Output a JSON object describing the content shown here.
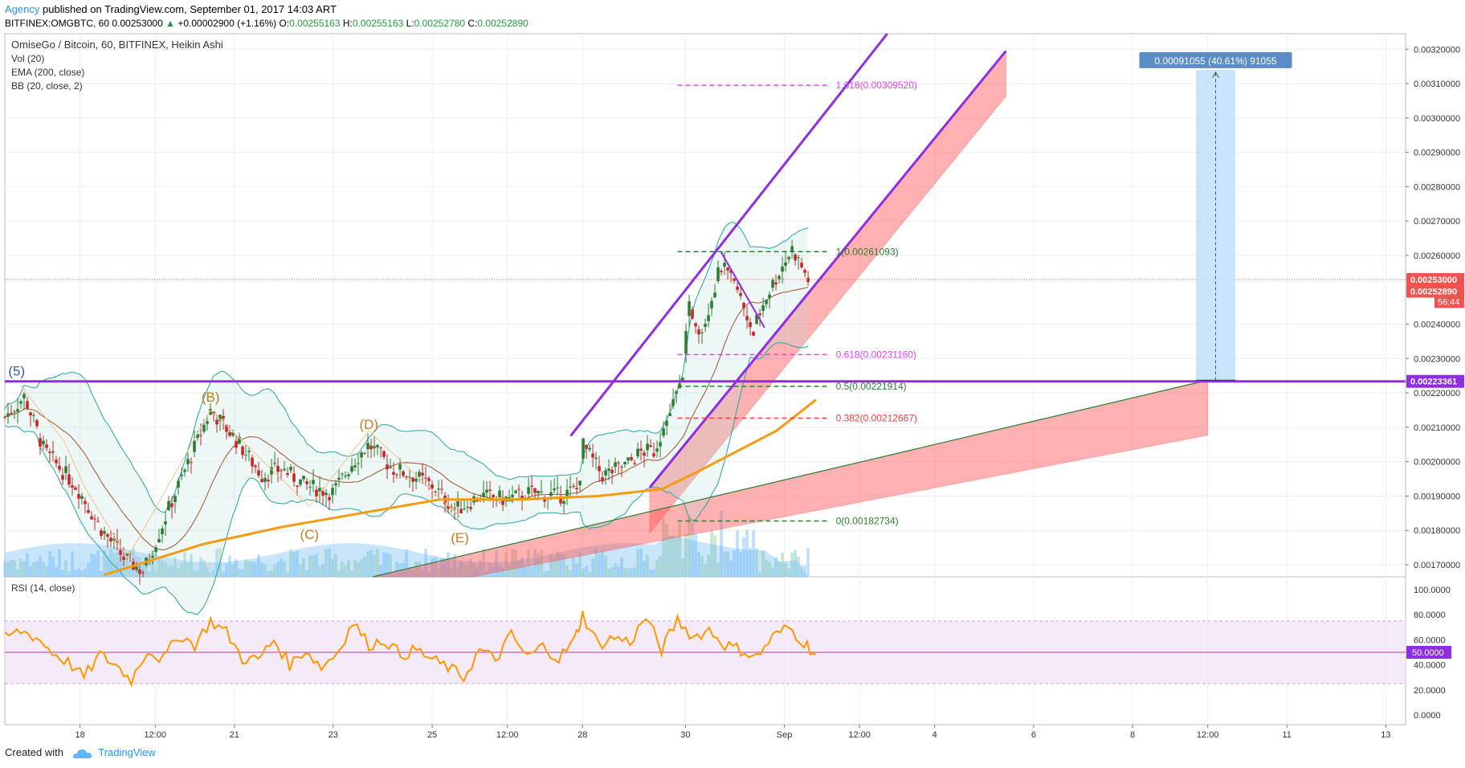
{
  "header": {
    "author": "Agency",
    "published": "published on TradingView.com, September 01, 2017 14:03 ART",
    "symbol": "BITFINEX:OMGBTC, 60",
    "last": "0.00253000",
    "change": "+0.00002900 (+1.16%)",
    "o_label": "O:",
    "o_value": "0.00255163",
    "h_label": "H:",
    "h_value": "0.00255163",
    "l_label": "L:",
    "l_value": "0.00252780",
    "c_label": "C:",
    "c_value": "0.00252890"
  },
  "legend": {
    "title": "OmiseGo / Bitcoin, 60, BITFINEX, Heikin Ashi",
    "vol": "Vol (20)",
    "ema": "EMA (200, close)",
    "bb": "BB (20, close, 2)",
    "rsi": "RSI (14, close)"
  },
  "footer": {
    "created": "Created with",
    "brand": "TradingView"
  },
  "colors": {
    "purple": "#9c27b0",
    "violet": "#8e2de2",
    "ema": "#f39c12",
    "rsi": "#ff9800",
    "red_fill": "#ff5252",
    "fib_green": "#2e7d32",
    "fib_magenta": "#e040fb",
    "fib_red": "#ef3d3d",
    "up_candle": "#2e7d32",
    "down_candle": "#c62828",
    "bb_line": "#26a69a",
    "measure": "#5b8cc4",
    "last_price_tag": "#ef5350"
  },
  "chart_data": {
    "type": "candlestick",
    "title": "OmiseGo / Bitcoin, 60, BITFINEX, Heikin Ashi",
    "price_axis": {
      "ticks": [
        "0.00320000",
        "0.00310000",
        "0.00300000",
        "0.00290000",
        "0.00280000",
        "0.00270000",
        "0.00260000",
        "0.00240000",
        "0.00230000",
        "0.00220000",
        "0.00210000",
        "0.00200000",
        "0.00190000",
        "0.00180000",
        "0.00170000"
      ],
      "tick_values": [
        0.0032,
        0.0031,
        0.003,
        0.0029,
        0.0028,
        0.0027,
        0.0026,
        0.0024,
        0.0023,
        0.0022,
        0.0021,
        0.002,
        0.0019,
        0.0018,
        0.0017
      ],
      "range": [
        0.001665,
        0.003245
      ]
    },
    "time_axis": {
      "labels": [
        "18",
        "12:00",
        "21",
        "23",
        "25",
        "12:00",
        "28",
        "30",
        "Sep",
        "12:00",
        "4",
        "6",
        "8",
        "12:00",
        "11",
        "13"
      ],
      "positions": [
        1.9,
        3.8,
        5.8,
        8.3,
        10.8,
        12.7,
        14.6,
        17.2,
        19.7,
        21.6,
        23.5,
        26.0,
        28.5,
        30.4,
        32.4,
        34.9
      ],
      "range": [
        0,
        35.4
      ]
    },
    "price_tags": {
      "last": "0.00253000",
      "close": "0.00252890",
      "countdown": "56:44",
      "resistance": "0.00223361"
    },
    "horizontal_line": {
      "value": 0.00223361
    },
    "fib_levels": [
      {
        "label": "1.618(0.00309520)",
        "value": 0.0030952
      },
      {
        "label": "1(0.00261093)",
        "value": 0.00261093
      },
      {
        "label": "0.618(0.00231160)",
        "value": 0.0023116
      },
      {
        "label": "0.5(0.00221914)",
        "value": 0.00221914
      },
      {
        "label": "0.382(0.00212667)",
        "value": 0.00212667
      },
      {
        "label": "0(0.00182734)",
        "value": 0.00182734
      }
    ],
    "measure_label": "0.00091055 (40.61%) 91055",
    "wave_labels": [
      {
        "text": "(5)",
        "t": 0.3,
        "v": 0.00225
      },
      {
        "text": "(B)",
        "t": 5.2,
        "v": 0.002175
      },
      {
        "text": "(C)",
        "t": 7.7,
        "v": 0.001775
      },
      {
        "text": "(D)",
        "t": 9.2,
        "v": 0.002095
      },
      {
        "text": "(E)",
        "t": 11.5,
        "v": 0.001765
      }
    ],
    "channel_upper": [
      [
        14.3,
        0.002075
      ],
      [
        22.3,
        0.003245
      ]
    ],
    "channel_lower": [
      [
        16.3,
        0.001925
      ],
      [
        25.3,
        0.003195
      ]
    ],
    "trend_line": [
      [
        9.3,
        0.001665
      ],
      [
        30.4,
        0.002237
      ]
    ],
    "ema_200": [
      [
        2.5,
        0.00167
      ],
      [
        5.0,
        0.00176
      ],
      [
        7.0,
        0.00181
      ],
      [
        9.0,
        0.00185
      ],
      [
        11.0,
        0.00189
      ],
      [
        13.0,
        0.00189
      ],
      [
        15.0,
        0.0019
      ],
      [
        16.6,
        0.00192
      ],
      [
        17.5,
        0.00197
      ],
      [
        18.5,
        0.00203
      ],
      [
        19.5,
        0.00209
      ],
      [
        20.5,
        0.00218
      ]
    ],
    "series_summary": [
      [
        0.0,
        0.00213
      ],
      [
        0.5,
        0.00219
      ],
      [
        1.0,
        0.00203
      ],
      [
        1.8,
        0.00193
      ],
      [
        2.4,
        0.00181
      ],
      [
        3.0,
        0.00172
      ],
      [
        3.5,
        0.00168
      ],
      [
        4.2,
        0.00188
      ],
      [
        5.2,
        0.00215
      ],
      [
        5.8,
        0.00207
      ],
      [
        6.5,
        0.00196
      ],
      [
        7.0,
        0.00198
      ],
      [
        7.6,
        0.00193
      ],
      [
        8.3,
        0.00191
      ],
      [
        8.8,
        0.002
      ],
      [
        9.2,
        0.00205
      ],
      [
        9.8,
        0.00198
      ],
      [
        10.3,
        0.00196
      ],
      [
        10.8,
        0.00193
      ],
      [
        11.4,
        0.00186
      ],
      [
        12.0,
        0.0019
      ],
      [
        12.7,
        0.00189
      ],
      [
        13.3,
        0.00191
      ],
      [
        14.0,
        0.0019
      ],
      [
        14.5,
        0.00192
      ],
      [
        14.6,
        0.00205
      ],
      [
        15.1,
        0.00196
      ],
      [
        15.7,
        0.00199
      ],
      [
        16.1,
        0.00203
      ],
      [
        16.4,
        0.00203
      ],
      [
        16.8,
        0.00214
      ],
      [
        17.1,
        0.00223
      ],
      [
        17.3,
        0.00245
      ],
      [
        17.6,
        0.00238
      ],
      [
        18.1,
        0.00257
      ],
      [
        18.5,
        0.0025
      ],
      [
        18.9,
        0.00238
      ],
      [
        19.2,
        0.00247
      ],
      [
        19.6,
        0.00256
      ],
      [
        19.9,
        0.00262
      ],
      [
        20.3,
        0.00253
      ]
    ],
    "rsi": {
      "title": "RSI (14, close)",
      "ticks": [
        "100.0000",
        "80.0000",
        "60.0000",
        "40.0000",
        "20.0000",
        "0.0000"
      ],
      "tick_values": [
        100,
        80,
        60,
        40,
        20,
        0
      ],
      "current": "50.0000",
      "band": [
        25,
        75
      ],
      "values": [
        [
          0.0,
          62
        ],
        [
          0.4,
          67
        ],
        [
          0.8,
          62
        ],
        [
          1.2,
          50
        ],
        [
          1.6,
          42
        ],
        [
          2.0,
          30
        ],
        [
          2.4,
          48
        ],
        [
          2.8,
          40
        ],
        [
          3.2,
          28
        ],
        [
          3.6,
          52
        ],
        [
          4.0,
          44
        ],
        [
          4.4,
          64
        ],
        [
          4.8,
          56
        ],
        [
          5.2,
          75
        ],
        [
          5.6,
          66
        ],
        [
          6.0,
          45
        ],
        [
          6.4,
          44
        ],
        [
          6.8,
          60
        ],
        [
          7.2,
          40
        ],
        [
          7.6,
          52
        ],
        [
          8.0,
          38
        ],
        [
          8.4,
          50
        ],
        [
          8.8,
          74
        ],
        [
          9.2,
          56
        ],
        [
          9.6,
          60
        ],
        [
          10.0,
          48
        ],
        [
          10.4,
          52
        ],
        [
          10.8,
          44
        ],
        [
          11.2,
          38
        ],
        [
          11.6,
          30
        ],
        [
          12.0,
          52
        ],
        [
          12.4,
          44
        ],
        [
          12.8,
          64
        ],
        [
          13.2,
          46
        ],
        [
          13.6,
          55
        ],
        [
          14.0,
          45
        ],
        [
          14.4,
          60
        ],
        [
          14.6,
          80
        ],
        [
          15.0,
          56
        ],
        [
          15.4,
          62
        ],
        [
          15.8,
          58
        ],
        [
          16.2,
          78
        ],
        [
          16.6,
          52
        ],
        [
          17.0,
          76
        ],
        [
          17.4,
          62
        ],
        [
          17.8,
          68
        ],
        [
          18.2,
          56
        ],
        [
          18.6,
          52
        ],
        [
          19.0,
          46
        ],
        [
          19.4,
          62
        ],
        [
          19.8,
          70
        ],
        [
          20.2,
          58
        ],
        [
          20.5,
          48
        ]
      ]
    }
  }
}
